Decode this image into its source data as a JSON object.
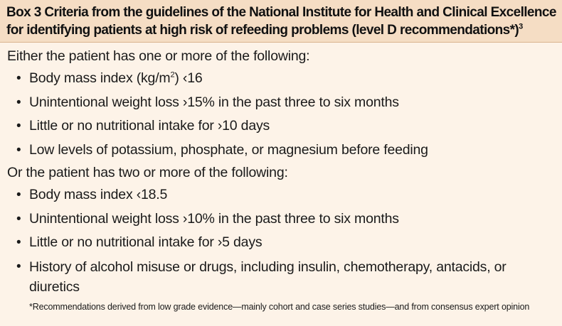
{
  "box": {
    "title_line1": "Box 3 Criteria from the guidelines of the National Institute for Health and Clinical Excellence",
    "title_line2": "for identifying patients at high risk of refeeding problems (level D recommendations*)",
    "title_ref": "3",
    "accent_color": "#f5ddc4",
    "background_color": "#fdf3e8"
  },
  "section1": {
    "intro": "Either the patient has one or more of the following:",
    "items": {
      "bmi_prefix": "Body mass index (kg/m",
      "bmi_sup": "2",
      "bmi_suffix": ") ‹16",
      "weight_loss": "Unintentional weight loss ›15% in the past three to six months",
      "intake": "Little or no nutritional intake for ›10 days",
      "levels": "Low levels of potassium, phosphate, or magnesium before feeding"
    }
  },
  "section2": {
    "intro": "Or the patient has two or more of the following:",
    "items": {
      "bmi": "Body mass index ‹18.5",
      "weight_loss": "Unintentional weight loss ›10% in the past three to six months",
      "intake": "Little or no nutritional intake for ›5 days",
      "history": "History of alcohol misuse or drugs, including insulin, chemotherapy, antacids, or diuretics"
    }
  },
  "footnote": "*Recommendations derived from low grade evidence—mainly cohort and case series studies—and from consensus expert opinion",
  "bullet_glyph": "•"
}
